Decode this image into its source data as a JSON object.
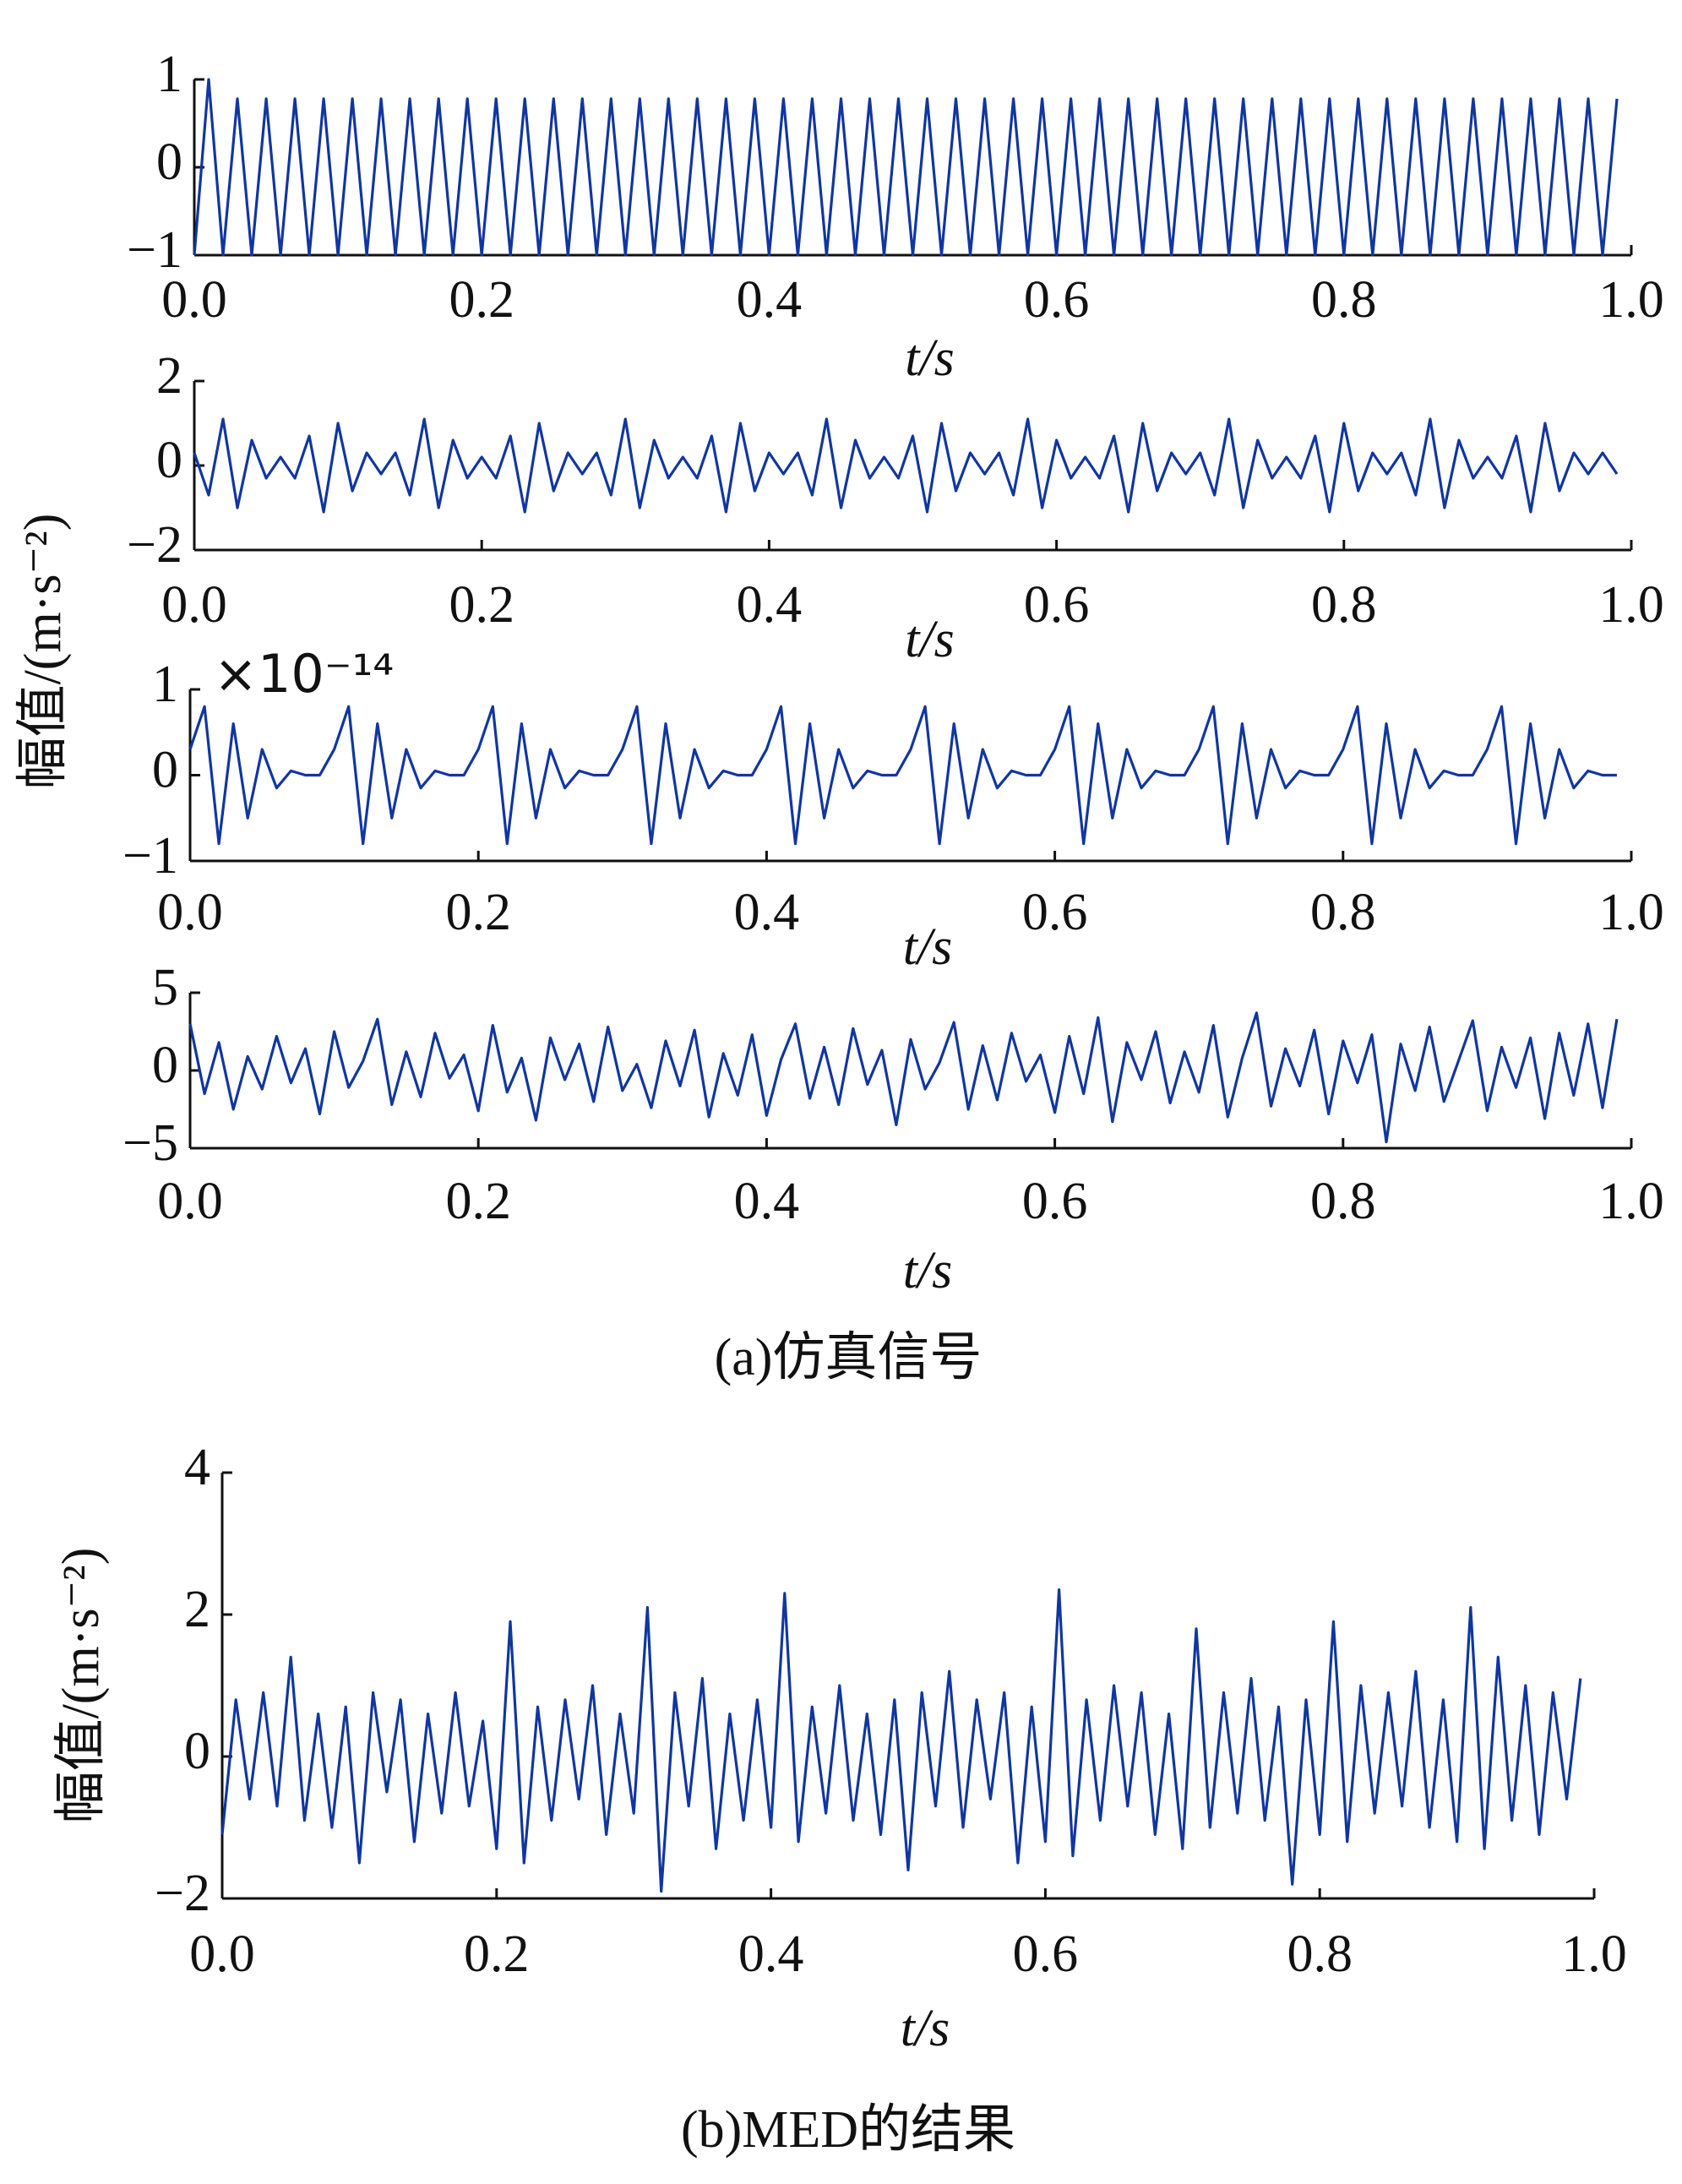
{
  "chart_data": [
    {
      "type": "line",
      "color": "#1036a0",
      "x": [
        0,
        0.01,
        0.02,
        0.03,
        0.04,
        0.05,
        0.06,
        0.07,
        0.08,
        0.09,
        0.1,
        0.11,
        0.12,
        0.13,
        0.14,
        0.15,
        0.16,
        0.17,
        0.18,
        0.19,
        0.2,
        0.21,
        0.22,
        0.23,
        0.24,
        0.25,
        0.26,
        0.27,
        0.28,
        0.29,
        0.3,
        0.31,
        0.32,
        0.33,
        0.34,
        0.35,
        0.36,
        0.37,
        0.38,
        0.39,
        0.4,
        0.41,
        0.42,
        0.43,
        0.44,
        0.45,
        0.46,
        0.47,
        0.48,
        0.49,
        0.5,
        0.51,
        0.52,
        0.53,
        0.54,
        0.55,
        0.56,
        0.57,
        0.58,
        0.59,
        0.6,
        0.61,
        0.62,
        0.63,
        0.64,
        0.65,
        0.66,
        0.67,
        0.68,
        0.69,
        0.7,
        0.71,
        0.72,
        0.73,
        0.74,
        0.75,
        0.76,
        0.77,
        0.78,
        0.79,
        0.8,
        0.81,
        0.82,
        0.83,
        0.84,
        0.85,
        0.86,
        0.87,
        0.88,
        0.89,
        0.9,
        0.91,
        0.92,
        0.93,
        0.94,
        0.95,
        0.96,
        0.97,
        0.98,
        0.99
      ],
      "values": [
        -1,
        1,
        -1,
        0.78,
        -1,
        0.78,
        -1,
        0.78,
        -1,
        0.78,
        -1,
        0.78,
        -1,
        0.78,
        -1,
        0.78,
        -1,
        0.78,
        -1,
        0.78,
        -1,
        0.78,
        -1,
        0.78,
        -1,
        0.78,
        -1,
        0.78,
        -1,
        0.78,
        -1,
        0.78,
        -1,
        0.78,
        -1,
        0.78,
        -1,
        0.78,
        -1,
        0.78,
        -1,
        0.78,
        -1,
        0.78,
        -1,
        0.78,
        -1,
        0.78,
        -1,
        0.78,
        -1,
        0.78,
        -1,
        0.78,
        -1,
        0.78,
        -1,
        0.78,
        -1,
        0.78,
        -1,
        0.78,
        -1,
        0.78,
        -1,
        0.78,
        -1,
        0.78,
        -1,
        0.78,
        -1,
        0.78,
        -1,
        0.78,
        -1,
        0.78,
        -1,
        0.78,
        -1,
        0.78,
        -1,
        0.78,
        -1,
        0.78,
        -1,
        0.78,
        -1,
        0.78,
        -1,
        0.78,
        -1,
        0.78,
        -1,
        0.78,
        -1,
        0.78,
        -1,
        0.78,
        -1,
        0.78
      ],
      "xlim": [
        0,
        1
      ],
      "ylim": [
        -1,
        1
      ],
      "xticks": [
        {
          "value": 0,
          "label": "0.0"
        },
        0.2,
        0.4,
        0.6,
        0.8,
        {
          "value": 1,
          "label": "1.0"
        }
      ],
      "yticks": [
        {
          "value": -1,
          "label": "−1"
        },
        0,
        1
      ],
      "xlabel": "t/s"
    },
    {
      "type": "line",
      "color": "#1036a0",
      "x": [
        0,
        0.01,
        0.02,
        0.03,
        0.04,
        0.05,
        0.06,
        0.07,
        0.08,
        0.09,
        0.1,
        0.11,
        0.12,
        0.13,
        0.14,
        0.15,
        0.16,
        0.17,
        0.18,
        0.19,
        0.2,
        0.21,
        0.22,
        0.23,
        0.24,
        0.25,
        0.26,
        0.27,
        0.28,
        0.29,
        0.3,
        0.31,
        0.32,
        0.33,
        0.34,
        0.35,
        0.36,
        0.37,
        0.38,
        0.39,
        0.4,
        0.41,
        0.42,
        0.43,
        0.44,
        0.45,
        0.46,
        0.47,
        0.48,
        0.49,
        0.5,
        0.51,
        0.52,
        0.53,
        0.54,
        0.55,
        0.56,
        0.57,
        0.58,
        0.59,
        0.6,
        0.61,
        0.62,
        0.63,
        0.64,
        0.65,
        0.66,
        0.67,
        0.68,
        0.69,
        0.7,
        0.71,
        0.72,
        0.73,
        0.74,
        0.75,
        0.76,
        0.77,
        0.78,
        0.79,
        0.8,
        0.81,
        0.82,
        0.83,
        0.84,
        0.85,
        0.86,
        0.87,
        0.88,
        0.89,
        0.9,
        0.91,
        0.92,
        0.93,
        0.94,
        0.95,
        0.96,
        0.97,
        0.98,
        0.99
      ],
      "values": [
        0.3,
        -0.7,
        1.1,
        -1.0,
        0.6,
        -0.3,
        0.2,
        -0.3,
        0.7,
        -1.1,
        1.0,
        -0.6,
        0.3,
        -0.2,
        0.3,
        -0.7,
        1.1,
        -1.0,
        0.6,
        -0.3,
        0.2,
        -0.3,
        0.7,
        -1.1,
        1.0,
        -0.6,
        0.3,
        -0.2,
        0.3,
        -0.7,
        1.1,
        -1.0,
        0.6,
        -0.3,
        0.2,
        -0.3,
        0.7,
        -1.1,
        1.0,
        -0.6,
        0.3,
        -0.2,
        0.3,
        -0.7,
        1.1,
        -1.0,
        0.6,
        -0.3,
        0.2,
        -0.3,
        0.7,
        -1.1,
        1.0,
        -0.6,
        0.3,
        -0.2,
        0.3,
        -0.7,
        1.1,
        -1.0,
        0.6,
        -0.3,
        0.2,
        -0.3,
        0.7,
        -1.1,
        1.0,
        -0.6,
        0.3,
        -0.2,
        0.3,
        -0.7,
        1.1,
        -1.0,
        0.6,
        -0.3,
        0.2,
        -0.3,
        0.7,
        -1.1,
        1.0,
        -0.6,
        0.3,
        -0.2,
        0.3,
        -0.7,
        1.1,
        -1.0,
        0.6,
        -0.3,
        0.2,
        -0.3,
        0.7,
        -1.1,
        1.0,
        -0.6,
        0.3,
        -0.2,
        0.3,
        -0.2
      ],
      "xlim": [
        0,
        1
      ],
      "ylim": [
        -2,
        2
      ],
      "xticks": [
        {
          "value": 0,
          "label": "0.0"
        },
        0.2,
        0.4,
        0.6,
        0.8,
        {
          "value": 1,
          "label": "1.0"
        }
      ],
      "yticks": [
        {
          "value": -2,
          "label": "−2"
        },
        0,
        2
      ],
      "xlabel": "t/s"
    },
    {
      "type": "line",
      "color": "#1036a0",
      "x": [
        0,
        0.01,
        0.02,
        0.03,
        0.04,
        0.05,
        0.06,
        0.07,
        0.08,
        0.09,
        0.1,
        0.11,
        0.12,
        0.13,
        0.14,
        0.15,
        0.16,
        0.17,
        0.18,
        0.19,
        0.2,
        0.21,
        0.22,
        0.23,
        0.24,
        0.25,
        0.26,
        0.27,
        0.28,
        0.29,
        0.3,
        0.31,
        0.32,
        0.33,
        0.34,
        0.35,
        0.36,
        0.37,
        0.38,
        0.39,
        0.4,
        0.41,
        0.42,
        0.43,
        0.44,
        0.45,
        0.46,
        0.47,
        0.48,
        0.49,
        0.5,
        0.51,
        0.52,
        0.53,
        0.54,
        0.55,
        0.56,
        0.57,
        0.58,
        0.59,
        0.6,
        0.61,
        0.62,
        0.63,
        0.64,
        0.65,
        0.66,
        0.67,
        0.68,
        0.69,
        0.7,
        0.71,
        0.72,
        0.73,
        0.74,
        0.75,
        0.76,
        0.77,
        0.78,
        0.79,
        0.8,
        0.81,
        0.82,
        0.83,
        0.84,
        0.85,
        0.86,
        0.87,
        0.88,
        0.89,
        0.9,
        0.91,
        0.92,
        0.93,
        0.94,
        0.95,
        0.96,
        0.97,
        0.98,
        0.99
      ],
      "values": [
        0.3,
        0.8,
        -0.8,
        0.6,
        -0.5,
        0.3,
        -0.15,
        0.05,
        0,
        0,
        0.3,
        0.8,
        -0.8,
        0.6,
        -0.5,
        0.3,
        -0.15,
        0.05,
        0,
        0,
        0.3,
        0.8,
        -0.8,
        0.6,
        -0.5,
        0.3,
        -0.15,
        0.05,
        0,
        0,
        0.3,
        0.8,
        -0.8,
        0.6,
        -0.5,
        0.3,
        -0.15,
        0.05,
        0,
        0,
        0.3,
        0.8,
        -0.8,
        0.6,
        -0.5,
        0.3,
        -0.15,
        0.05,
        0,
        0,
        0.3,
        0.8,
        -0.8,
        0.6,
        -0.5,
        0.3,
        -0.15,
        0.05,
        0,
        0,
        0.3,
        0.8,
        -0.8,
        0.6,
        -0.5,
        0.3,
        -0.15,
        0.05,
        0,
        0,
        0.3,
        0.8,
        -0.8,
        0.6,
        -0.5,
        0.3,
        -0.15,
        0.05,
        0,
        0,
        0.3,
        0.8,
        -0.8,
        0.6,
        -0.5,
        0.3,
        -0.15,
        0.05,
        0,
        0,
        0.3,
        0.8,
        -0.8,
        0.6,
        -0.5,
        0.3,
        -0.15,
        0.05,
        0,
        0
      ],
      "xlim": [
        0,
        1
      ],
      "ylim": [
        -1,
        1
      ],
      "xticks": [
        {
          "value": 0,
          "label": "0.0"
        },
        0.2,
        0.4,
        0.6,
        0.8,
        {
          "value": 1,
          "label": "1.0"
        }
      ],
      "yticks": [
        {
          "value": -1,
          "label": "−1"
        },
        0,
        1
      ],
      "exponent_label": "×10⁻¹⁴",
      "xlabel": "t/s"
    },
    {
      "type": "line",
      "color": "#1036a0",
      "x": [
        0,
        0.01,
        0.02,
        0.03,
        0.04,
        0.05,
        0.06,
        0.07,
        0.08,
        0.09,
        0.1,
        0.11,
        0.12,
        0.13,
        0.14,
        0.15,
        0.16,
        0.17,
        0.18,
        0.19,
        0.2,
        0.21,
        0.22,
        0.23,
        0.24,
        0.25,
        0.26,
        0.27,
        0.28,
        0.29,
        0.3,
        0.31,
        0.32,
        0.33,
        0.34,
        0.35,
        0.36,
        0.37,
        0.38,
        0.39,
        0.4,
        0.41,
        0.42,
        0.43,
        0.44,
        0.45,
        0.46,
        0.47,
        0.48,
        0.49,
        0.5,
        0.51,
        0.52,
        0.53,
        0.54,
        0.55,
        0.56,
        0.57,
        0.58,
        0.59,
        0.6,
        0.61,
        0.62,
        0.63,
        0.64,
        0.65,
        0.66,
        0.67,
        0.68,
        0.69,
        0.7,
        0.71,
        0.72,
        0.73,
        0.74,
        0.75,
        0.76,
        0.77,
        0.78,
        0.79,
        0.8,
        0.81,
        0.82,
        0.83,
        0.84,
        0.85,
        0.86,
        0.87,
        0.88,
        0.89,
        0.9,
        0.91,
        0.92,
        0.93,
        0.94,
        0.95,
        0.96,
        0.97,
        0.98,
        0.99
      ],
      "values": [
        3,
        -1.5,
        1.8,
        -2.5,
        0.9,
        -1.2,
        2.2,
        -0.8,
        1.4,
        -2.8,
        2.5,
        -1.1,
        0.6,
        3.3,
        -2.2,
        1.2,
        -1.7,
        2.4,
        -0.5,
        1.0,
        -2.6,
        2.9,
        -1.4,
        0.8,
        -3.2,
        2.1,
        -0.6,
        1.7,
        -2.0,
        2.8,
        -1.3,
        0.4,
        -2.4,
        1.9,
        -1.0,
        2.6,
        -3.0,
        1.1,
        -1.6,
        2.3,
        -2.9,
        0.7,
        3.0,
        -1.8,
        1.5,
        -2.2,
        2.7,
        -0.9,
        1.3,
        -3.5,
        2.0,
        -1.2,
        0.5,
        3.1,
        -2.5,
        1.6,
        -1.9,
        2.4,
        -0.7,
        1.0,
        -2.7,
        2.2,
        -1.5,
        3.4,
        -3.3,
        1.8,
        -0.6,
        2.5,
        -2.1,
        1.2,
        -1.4,
        2.9,
        -3.0,
        0.8,
        3.7,
        -2.3,
        1.4,
        -1.0,
        2.6,
        -2.8,
        1.9,
        -0.8,
        2.3,
        -4.6,
        1.7,
        -1.3,
        2.8,
        -2.0,
        0.6,
        3.2,
        -2.6,
        1.5,
        -1.1,
        2.1,
        -3.1,
        2.4,
        -1.6,
        3.0,
        -2.4,
        3.3
      ],
      "xlim": [
        0,
        1
      ],
      "ylim": [
        -5,
        5
      ],
      "xticks": [
        {
          "value": 0,
          "label": "0.0"
        },
        0.2,
        0.4,
        0.6,
        0.8,
        {
          "value": 1,
          "label": "1.0"
        }
      ],
      "yticks": [
        {
          "value": -5,
          "label": "−5"
        },
        0,
        5
      ],
      "xlabel": "t/s"
    },
    {
      "type": "line",
      "color": "#1036a0",
      "x": [
        0,
        0.01,
        0.02,
        0.03,
        0.04,
        0.05,
        0.06,
        0.07,
        0.08,
        0.09,
        0.1,
        0.11,
        0.12,
        0.13,
        0.14,
        0.15,
        0.16,
        0.17,
        0.18,
        0.19,
        0.2,
        0.21,
        0.22,
        0.23,
        0.24,
        0.25,
        0.26,
        0.27,
        0.28,
        0.29,
        0.3,
        0.31,
        0.32,
        0.33,
        0.34,
        0.35,
        0.36,
        0.37,
        0.38,
        0.39,
        0.4,
        0.41,
        0.42,
        0.43,
        0.44,
        0.45,
        0.46,
        0.47,
        0.48,
        0.49,
        0.5,
        0.51,
        0.52,
        0.53,
        0.54,
        0.55,
        0.56,
        0.57,
        0.58,
        0.59,
        0.6,
        0.61,
        0.62,
        0.63,
        0.64,
        0.65,
        0.66,
        0.67,
        0.68,
        0.69,
        0.7,
        0.71,
        0.72,
        0.73,
        0.74,
        0.75,
        0.76,
        0.77,
        0.78,
        0.79,
        0.8,
        0.81,
        0.82,
        0.83,
        0.84,
        0.85,
        0.86,
        0.87,
        0.88,
        0.89,
        0.9,
        0.91,
        0.92,
        0.93,
        0.94,
        0.95,
        0.96,
        0.97,
        0.98,
        0.99
      ],
      "values": [
        -1.1,
        0.8,
        -0.6,
        0.9,
        -0.7,
        1.4,
        -0.9,
        0.6,
        -1.0,
        0.7,
        -1.5,
        0.9,
        -0.5,
        0.8,
        -1.2,
        0.6,
        -0.8,
        0.9,
        -0.7,
        0.5,
        -1.3,
        1.9,
        -1.5,
        0.7,
        -0.9,
        0.8,
        -0.6,
        1.0,
        -1.1,
        0.6,
        -0.8,
        2.1,
        -1.9,
        0.9,
        -0.7,
        1.1,
        -1.3,
        0.6,
        -0.9,
        0.8,
        -1.0,
        2.3,
        -1.2,
        0.7,
        -0.8,
        1.0,
        -0.9,
        0.6,
        -1.1,
        0.8,
        -1.6,
        0.9,
        -0.7,
        1.2,
        -1.0,
        0.8,
        -0.6,
        0.9,
        -1.5,
        0.7,
        -1.2,
        2.35,
        -1.4,
        0.8,
        -0.9,
        1.0,
        -0.7,
        0.9,
        -1.1,
        0.6,
        -1.3,
        1.8,
        -1.0,
        0.9,
        -0.8,
        1.1,
        -0.9,
        0.7,
        -1.8,
        0.8,
        -1.1,
        1.9,
        -1.2,
        1.0,
        -0.8,
        0.9,
        -0.7,
        1.2,
        -1.0,
        0.8,
        -1.2,
        2.1,
        -1.3,
        1.4,
        -0.9,
        1.0,
        -1.1,
        0.9,
        -0.6,
        1.1
      ],
      "xlim": [
        0,
        1
      ],
      "ylim": [
        -2,
        4
      ],
      "xticks": [
        {
          "value": 0,
          "label": "0.0"
        },
        0.2,
        0.4,
        0.6,
        0.8,
        {
          "value": 1,
          "label": "1.0"
        }
      ],
      "yticks": [
        {
          "value": -2,
          "label": "−2"
        },
        0,
        2,
        4
      ],
      "xlabel": "t/s",
      "ylabel": "幅值/(m·s⁻²)"
    }
  ],
  "figure_a": {
    "ylabel": "幅值/(m·s⁻²)",
    "caption": "(a)仿真信号"
  },
  "figure_b": {
    "caption": "(b)MED的结果"
  }
}
